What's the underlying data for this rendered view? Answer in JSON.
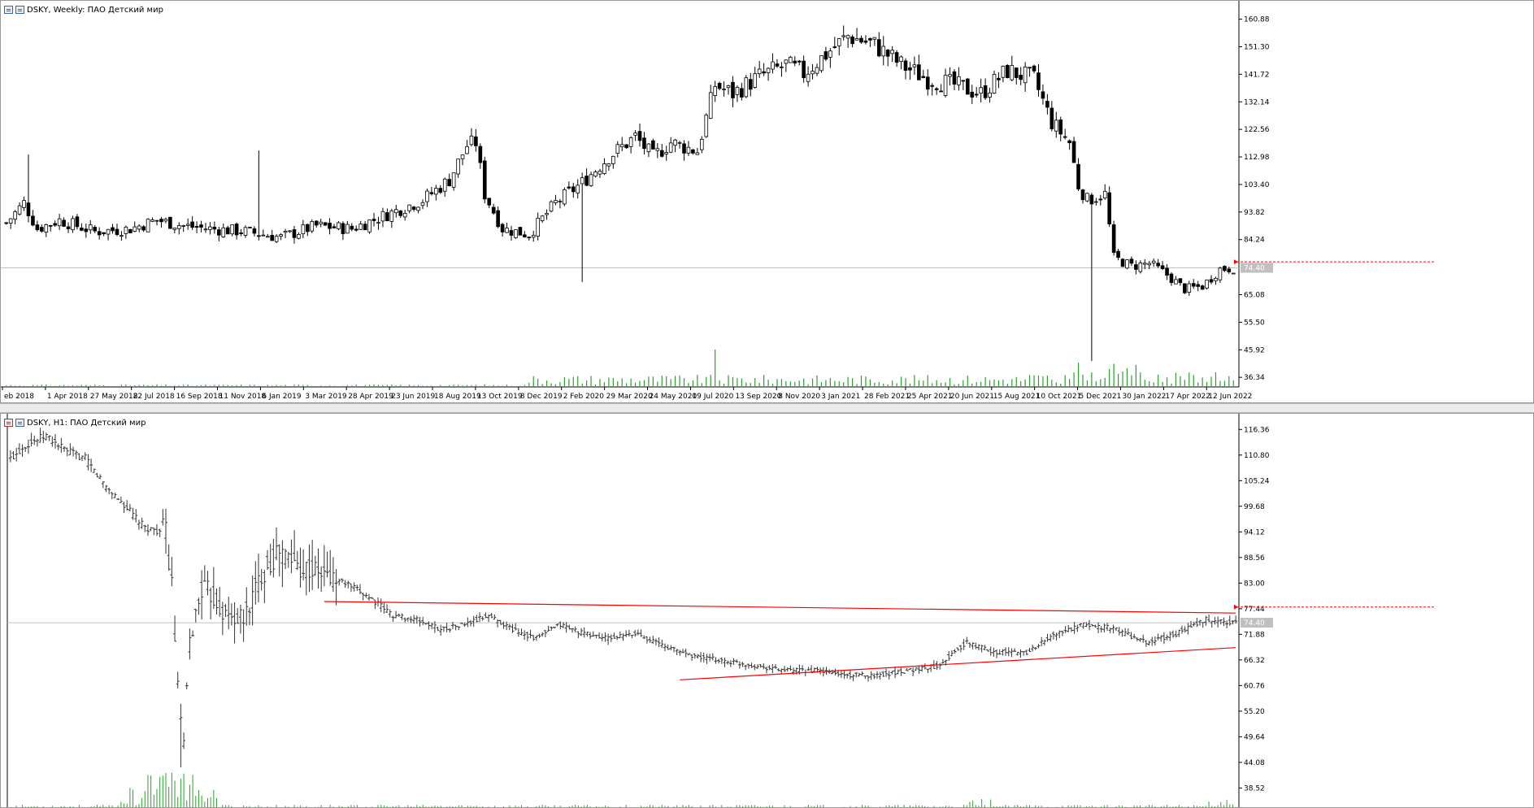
{
  "window1": {
    "title": "DSKY, Weekly:  ПАО Детский мир",
    "current_price": "74.40",
    "price_axis": [
      "160.88",
      "151.30",
      "141.72",
      "132.14",
      "122.56",
      "112.98",
      "103.40",
      "93.82",
      "84.24",
      "74.40",
      "65.08",
      "55.50",
      "45.92",
      "36.34"
    ],
    "time_axis": [
      "eb 2018",
      "1 Apr 2018",
      "27 May 2018",
      "22 Jul 2018",
      "16 Sep 2018",
      "11 Nov 2018",
      "6 Jan 2019",
      "3 Mar 2019",
      "28 Apr 2019",
      "23 Jun 2019",
      "18 Aug 2019",
      "13 Oct 2019",
      "8 Dec 2019",
      "2 Feb 2020",
      "29 Mar 2020",
      "24 May 2020",
      "19 Jul 2020",
      "13 Sep 2020",
      "8 Nov 2020",
      "3 Jan 2021",
      "28 Feb 2021",
      "25 Apr 2021",
      "20 Jun 2021",
      "15 Aug 2021",
      "10 Oct 2021",
      "5 Dec 2021",
      "30 Jan 2022",
      "17 Apr 2022",
      "12 Jun 2022"
    ]
  },
  "window2": {
    "title": "DSKY, H1:  ПАО Детский мир",
    "current_price": "74.40",
    "price_axis": [
      "116.36",
      "110.80",
      "105.24",
      "99.68",
      "94.12",
      "88.56",
      "83.00",
      "77.44",
      "74.40",
      "71.88",
      "66.32",
      "60.76",
      "55.20",
      "49.64",
      "44.08",
      "38.52"
    ]
  },
  "colors": {
    "candle": "#000000",
    "volume": "#2ca02c",
    "trendline": "#ff0000",
    "current_price_line": "#c0c0c0",
    "current_price_label_bg": "#c0c0c0"
  },
  "chart_data": [
    {
      "type": "candlestick",
      "title": "DSKY, Weekly:  ПАО Детский мир",
      "ylim": [
        33,
        165
      ],
      "current_price": 74.4,
      "x_ticks": [
        "eb 2018",
        "1 Apr 2018",
        "27 May 2018",
        "22 Jul 2018",
        "16 Sep 2018",
        "11 Nov 2018",
        "6 Jan 2019",
        "3 Mar 2019",
        "28 Apr 2019",
        "23 Jun 2019",
        "18 Aug 2019",
        "13 Oct 2019",
        "8 Dec 2019",
        "2 Feb 2020",
        "29 Mar 2020",
        "24 May 2020",
        "19 Jul 2020",
        "13 Sep 2020",
        "8 Nov 2020",
        "3 Jan 2021",
        "28 Feb 2021",
        "25 Apr 2021",
        "20 Jun 2021",
        "15 Aug 2021",
        "10 Oct 2021",
        "5 Dec 2021",
        "30 Jan 2022",
        "17 Apr 2022",
        "12 Jun 2022"
      ],
      "close_anchors": [
        [
          0,
          90
        ],
        [
          4,
          97
        ],
        [
          7,
          88
        ],
        [
          12,
          91
        ],
        [
          20,
          87
        ],
        [
          28,
          88
        ],
        [
          34,
          91
        ],
        [
          40,
          89
        ],
        [
          46,
          88
        ],
        [
          54,
          87
        ],
        [
          62,
          85
        ],
        [
          70,
          89
        ],
        [
          78,
          88
        ],
        [
          86,
          93
        ],
        [
          94,
          98
        ],
        [
          100,
          105
        ],
        [
          104,
          117
        ],
        [
          106,
          118
        ],
        [
          108,
          100
        ],
        [
          112,
          88
        ],
        [
          118,
          86
        ],
        [
          124,
          97
        ],
        [
          130,
          104
        ],
        [
          136,
          113
        ],
        [
          142,
          120
        ],
        [
          146,
          113
        ],
        [
          150,
          118
        ],
        [
          156,
          115
        ],
        [
          160,
          138
        ],
        [
          164,
          135
        ],
        [
          170,
          141
        ],
        [
          176,
          145
        ],
        [
          180,
          142
        ],
        [
          186,
          150
        ],
        [
          190,
          155
        ],
        [
          196,
          152
        ],
        [
          202,
          145
        ],
        [
          208,
          140
        ],
        [
          214,
          138
        ],
        [
          220,
          135
        ],
        [
          226,
          143
        ],
        [
          232,
          140
        ],
        [
          236,
          125
        ],
        [
          240,
          118
        ],
        [
          242,
          103
        ],
        [
          244,
          98
        ],
        [
          248,
          100
        ],
        [
          250,
          78
        ],
        [
          254,
          75
        ],
        [
          258,
          76
        ],
        [
          262,
          72
        ],
        [
          266,
          67
        ],
        [
          270,
          68
        ],
        [
          274,
          74
        ],
        [
          277,
          74.4
        ]
      ],
      "notable_wicks": [
        {
          "week": 5,
          "high": 113.8
        },
        {
          "week": 57,
          "high": 115.2
        },
        {
          "week": 130,
          "low": 69.5
        },
        {
          "week": 245,
          "low": 42
        }
      ],
      "volume_spikes": [
        {
          "week": 160,
          "value": 100
        },
        {
          "week": 252,
          "value": 75
        },
        {
          "week": 265,
          "value": 60
        }
      ]
    },
    {
      "type": "bar",
      "title": "DSKY, H1:  ПАО Детский мир",
      "ylim": [
        34,
        118
      ],
      "current_price": 74.4,
      "close_anchors": [
        [
          0,
          110
        ],
        [
          5,
          113
        ],
        [
          12,
          115
        ],
        [
          18,
          112
        ],
        [
          25,
          110
        ],
        [
          32,
          104
        ],
        [
          38,
          100
        ],
        [
          45,
          95
        ],
        [
          52,
          94
        ],
        [
          54,
          83
        ],
        [
          56,
          60
        ],
        [
          58,
          48
        ],
        [
          60,
          70
        ],
        [
          64,
          82
        ],
        [
          68,
          80
        ],
        [
          72,
          76
        ],
        [
          78,
          75
        ],
        [
          84,
          85
        ],
        [
          90,
          90
        ],
        [
          96,
          87
        ],
        [
          104,
          85
        ],
        [
          112,
          83
        ],
        [
          120,
          80
        ],
        [
          128,
          76
        ],
        [
          136,
          75
        ],
        [
          144,
          73
        ],
        [
          152,
          74
        ],
        [
          160,
          76
        ],
        [
          168,
          73
        ],
        [
          176,
          71
        ],
        [
          184,
          74
        ],
        [
          192,
          72
        ],
        [
          200,
          71
        ],
        [
          210,
          72
        ],
        [
          220,
          69
        ],
        [
          230,
          67
        ],
        [
          240,
          66
        ],
        [
          250,
          65
        ],
        [
          260,
          64
        ],
        [
          270,
          64
        ],
        [
          280,
          63
        ],
        [
          290,
          63
        ],
        [
          300,
          64
        ],
        [
          310,
          65
        ],
        [
          320,
          70
        ],
        [
          330,
          68
        ],
        [
          340,
          68
        ],
        [
          350,
          72
        ],
        [
          360,
          74
        ],
        [
          370,
          73
        ],
        [
          380,
          70
        ],
        [
          390,
          72
        ],
        [
          400,
          75
        ],
        [
          410,
          74.4
        ]
      ],
      "trendlines": [
        {
          "name": "resistance",
          "from": [
            105,
            79
          ],
          "to": [
            410,
            76.5
          ]
        },
        {
          "name": "support",
          "from": [
            224,
            62
          ],
          "to": [
            410,
            69
          ]
        }
      ]
    }
  ]
}
